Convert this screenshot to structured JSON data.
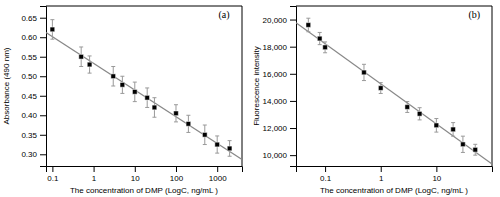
{
  "chart_data": [
    {
      "type": "scatter",
      "x_label": "The concentration of DMP (LogC, ng/mL )",
      "y_label": "Absorbance (490 nm)",
      "annotations": [
        "(a)"
      ],
      "log": "x",
      "grid": false,
      "xlim": [
        0.07,
        4000
      ],
      "ylim": [
        0.27,
        0.68
      ],
      "xticks": [
        0.1,
        1,
        10,
        100,
        1000
      ],
      "yticks": [
        {
          "value": 0.3,
          "label": "0.30"
        },
        {
          "value": 0.35,
          "label": "0.35"
        },
        {
          "value": 0.4,
          "label": "0.40"
        },
        {
          "value": 0.45,
          "label": "0.45"
        },
        {
          "value": 0.5,
          "label": "0.50"
        },
        {
          "value": 0.55,
          "label": "0.55"
        },
        {
          "value": 0.6,
          "label": "0.60"
        },
        {
          "value": 0.65,
          "label": "0.65"
        }
      ],
      "series": [
        {
          "type": "line",
          "color": "#888888",
          "line_style": "solid",
          "x": [
            0.07,
            4000
          ],
          "values": [
            0.6118,
            0.2868
          ]
        },
        {
          "type": "scatter",
          "color": "black",
          "marker": "square",
          "x": [
            0.1,
            0.5,
            0.8,
            3,
            5,
            10,
            20,
            30,
            100,
            200,
            500,
            1000,
            2000
          ],
          "values": [
            0.62,
            0.55,
            0.53,
            0.5,
            0.478,
            0.46,
            0.445,
            0.42,
            0.405,
            0.378,
            0.35,
            0.325,
            0.315
          ],
          "errors": [
            0.025,
            0.025,
            0.022,
            0.025,
            0.022,
            0.025,
            0.025,
            0.025,
            0.022,
            0.022,
            0.025,
            0.022,
            0.02
          ]
        }
      ]
    },
    {
      "type": "scatter",
      "x_label": "The concentration of DMP (LogC, ng/mL )",
      "y_label": "Fluorescence intensity",
      "annotations": [
        "(b)"
      ],
      "log": "x",
      "grid": false,
      "xlim": [
        0.03,
        100
      ],
      "ylim": [
        9200,
        21000
      ],
      "xticks": [
        0.1,
        1,
        10
      ],
      "yticks": [
        {
          "value": 10000,
          "label": "10,000"
        },
        {
          "value": 12000,
          "label": "12,000"
        },
        {
          "value": 14000,
          "label": "14,000"
        },
        {
          "value": 16000,
          "label": "16,000"
        },
        {
          "value": 18000,
          "label": "18,000"
        },
        {
          "value": 20000,
          "label": "20,000"
        }
      ],
      "series": [
        {
          "type": "line",
          "color": "#888888",
          "line_style": "solid",
          "x": [
            0.03,
            100
          ],
          "values": [
            19765.28,
            9339.6
          ]
        },
        {
          "type": "scatter",
          "color": "black",
          "marker": "square",
          "x": [
            0.05,
            0.08,
            0.1,
            0.5,
            1,
            3,
            5,
            10,
            20,
            30,
            50
          ],
          "values": [
            19600,
            18600,
            17950,
            16100,
            14950,
            13550,
            13050,
            12200,
            11900,
            10800,
            10400
          ],
          "errors": [
            500,
            450,
            400,
            600,
            400,
            400,
            450,
            500,
            500,
            600,
            400
          ]
        }
      ]
    }
  ]
}
